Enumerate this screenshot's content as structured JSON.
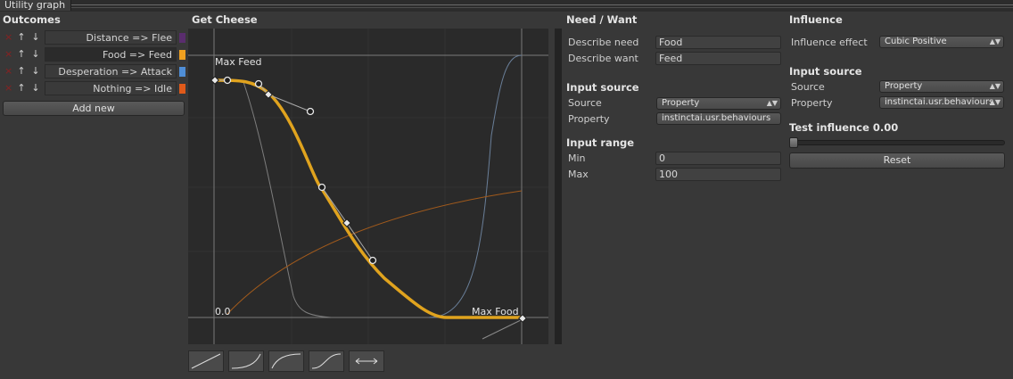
{
  "window": {
    "title": "Utility graph"
  },
  "outcomes": {
    "header": "Outcomes",
    "items": [
      {
        "label": "Distance => Flee",
        "color": "#5a2d6e",
        "selected": false
      },
      {
        "label": "Food => Feed",
        "color": "#f0a020",
        "selected": true
      },
      {
        "label": "Desperation => Attack",
        "color": "#4f8ed6",
        "selected": false
      },
      {
        "label": "Nothing => Idle",
        "color": "#e05a1a",
        "selected": false
      }
    ],
    "remove_glyph": "×",
    "up_glyph": "↑",
    "down_glyph": "↓",
    "add_new_label": "Add new"
  },
  "graph": {
    "header": "Get Cheese",
    "top_left_label": "Max Feed",
    "bottom_left_label": "0.0",
    "bottom_right_label": "Max Food",
    "curve_color": "#e0a31e",
    "shape_buttons": [
      "linear-shape-icon",
      "ease-in-shape-icon",
      "ease-out-shape-icon",
      "s-curve-shape-icon",
      "swap-horizontal-icon"
    ]
  },
  "need_want": {
    "header": "Need / Want",
    "describe_need_label": "Describe need",
    "describe_need_value": "Food",
    "describe_want_label": "Describe want",
    "describe_want_value": "Feed",
    "input_source_header": "Input source",
    "source_label": "Source",
    "source_value": "Property",
    "property_label": "Property",
    "property_value": "instinctai.usr.behaviours",
    "input_range_header": "Input range",
    "min_label": "Min",
    "min_value": "0",
    "max_label": "Max",
    "max_value": "100"
  },
  "influence": {
    "header": "Influence",
    "effect_label": "Influence effect",
    "effect_value": "Cubic Positive",
    "input_source_header": "Input source",
    "source_label": "Source",
    "source_value": "Property",
    "property_label": "Property",
    "property_value": "instinctai.usr.behaviours",
    "test_label": "Test influence 0.00",
    "test_value": 0.0,
    "reset_label": "Reset"
  }
}
